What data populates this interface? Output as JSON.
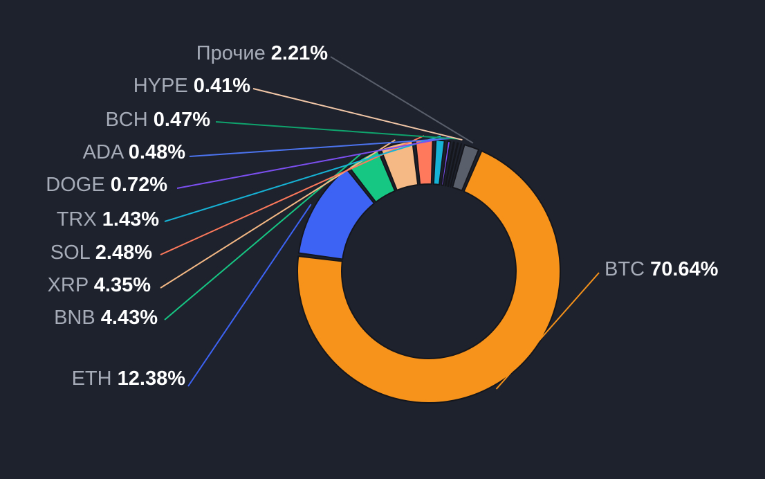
{
  "chart_data": {
    "type": "pie",
    "variant": "donut",
    "categories": [
      "BTC",
      "ETH",
      "BNB",
      "XRP",
      "SOL",
      "TRX",
      "DOGE",
      "ADA",
      "BCH",
      "HYPE",
      "Прочие"
    ],
    "values": [
      70.64,
      12.38,
      4.43,
      4.35,
      2.48,
      1.43,
      0.72,
      0.48,
      0.47,
      0.41,
      2.21
    ],
    "value_labels": [
      "70.64%",
      "12.38%",
      "4.43%",
      "4.35%",
      "2.48%",
      "1.43%",
      "0.72%",
      "0.48%",
      "0.47%",
      "0.41%",
      "2.21%"
    ],
    "unit": "%",
    "colors": [
      "#f7931a",
      "#3d63f5",
      "#16c784",
      "#f5b985",
      "#ff7a5c",
      "#16b3d6",
      "#7b4ff0",
      "#4c74f0",
      "#0fa36d",
      "#f3c8a8",
      "#5a5f6c"
    ],
    "title": "",
    "legend": "none"
  },
  "theme": {
    "background": "#1e222d",
    "name_text": "#a7acb9",
    "value_text": "#ffffff",
    "slice_border": "#14161c"
  }
}
